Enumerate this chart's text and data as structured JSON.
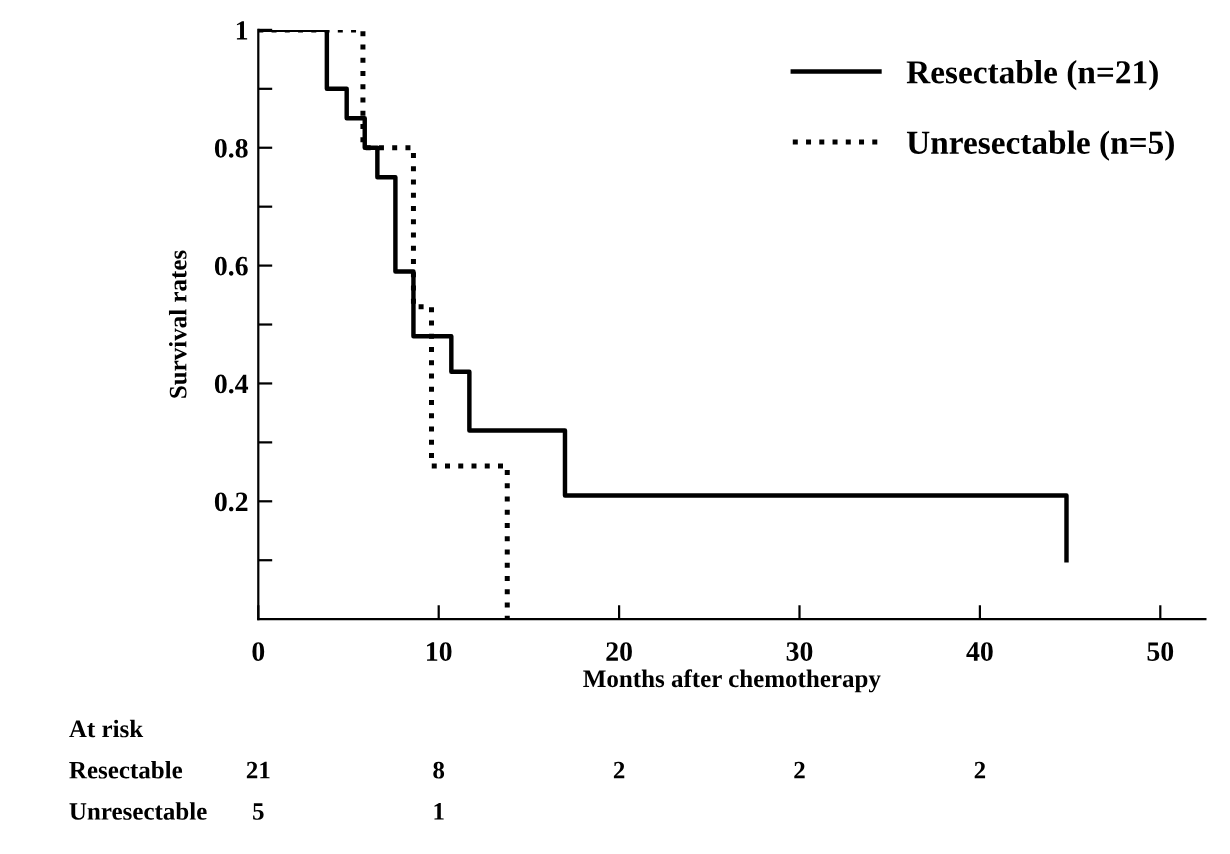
{
  "chart_data": {
    "type": "step",
    "xlabel": "Months after chemotherapy",
    "ylabel": "Survival rates",
    "series": [
      {
        "name": "Resectable (n=21)",
        "color": "#000000",
        "line_style": "solid",
        "x": [
          0,
          3.8,
          4.9,
          5.9,
          6.6,
          7.6,
          8.6,
          10.7,
          11.7,
          17.0,
          44.8
        ],
        "values": [
          1,
          0.9,
          0.85,
          0.8,
          0.75,
          0.59,
          0.48,
          0.42,
          0.32,
          0.21,
          0.1
        ]
      },
      {
        "name": "Unresectable (n=5)",
        "color": "#000000",
        "line_style": "dotted",
        "x": [
          0,
          5.8,
          8.6,
          9.6,
          13.8
        ],
        "values": [
          1,
          0.8,
          0.53,
          0.26,
          0
        ]
      }
    ],
    "xlim": [
      0,
      52.5
    ],
    "ylim": [
      0,
      1
    ],
    "xticks": [
      0,
      10,
      20,
      30,
      40,
      50
    ],
    "yticks": [
      {
        "value": 0.1,
        "label": null
      },
      0.2,
      {
        "value": 0.3,
        "label": null
      },
      0.4,
      {
        "value": 0.5,
        "label": null
      },
      0.6,
      {
        "value": 0.7,
        "label": null
      },
      0.8,
      {
        "value": 0.9,
        "label": null
      },
      1
    ],
    "grid": false,
    "legend": "top right",
    "marker": "none",
    "annotations": [
      "At risk",
      "Resectable",
      "21",
      "8",
      "2",
      "2",
      "2",
      "Unresectable",
      "5",
      "1"
    ]
  }
}
